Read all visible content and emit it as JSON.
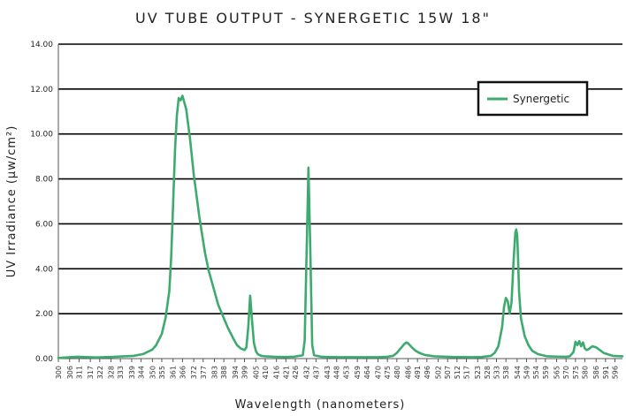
{
  "chart_data": {
    "type": "line",
    "title": "UV TUBE OUTPUT - SYNERGETIC 15W 18\"",
    "xlabel": "Wavelength (nanometers)",
    "ylabel": "UV Irradiance (μw/cm²)",
    "ylim": [
      0,
      14
    ],
    "xlim": [
      300,
      600
    ],
    "yticks": [
      "0.00",
      "2.00",
      "4.00",
      "6.00",
      "8.00",
      "10.00",
      "12.00",
      "14.00"
    ],
    "xticks": [
      "300",
      "306",
      "311",
      "317",
      "322",
      "328",
      "333",
      "339",
      "344",
      "350",
      "355",
      "361",
      "366",
      "372",
      "377",
      "383",
      "388",
      "394",
      "399",
      "405",
      "410",
      "416",
      "421",
      "426",
      "432",
      "437",
      "443",
      "448",
      "453",
      "459",
      "464",
      "470",
      "475",
      "480",
      "486",
      "491",
      "496",
      "502",
      "507",
      "512",
      "517",
      "523",
      "528",
      "533",
      "538",
      "544",
      "549",
      "554",
      "559",
      "565",
      "570",
      "575",
      "580",
      "586",
      "591",
      "596"
    ],
    "grid": true,
    "legend_position": "top-right",
    "series": [
      {
        "name": "Synergetic",
        "color": "#3daa6e",
        "x": [
          300,
          310,
          320,
          330,
          340,
          345,
          350,
          352,
          355,
          357,
          359,
          360,
          361,
          362,
          363,
          364,
          365,
          366,
          367,
          368,
          370,
          372,
          375,
          378,
          380,
          383,
          385,
          388,
          390,
          393,
          395,
          397,
          399,
          400,
          401,
          402,
          403,
          404,
          405,
          406,
          408,
          410,
          415,
          420,
          425,
          430,
          431,
          432,
          433,
          434,
          435,
          436,
          440,
          450,
          460,
          470,
          475,
          478,
          480,
          482,
          484,
          485,
          486,
          488,
          490,
          492,
          495,
          500,
          510,
          520,
          525,
          530,
          532,
          534,
          536,
          537,
          538,
          539,
          540,
          541,
          542,
          543,
          543.5,
          544,
          544.5,
          545,
          546,
          548,
          550,
          552,
          555,
          560,
          570,
          572,
          574,
          575,
          576,
          577,
          578,
          579,
          580,
          581,
          582,
          584,
          586,
          588,
          590,
          595,
          600
        ],
        "y": [
          0.03,
          0.08,
          0.05,
          0.08,
          0.12,
          0.2,
          0.4,
          0.6,
          1.1,
          1.8,
          3.0,
          4.5,
          6.8,
          9.2,
          10.8,
          11.6,
          11.5,
          11.7,
          11.4,
          11.1,
          9.8,
          8.2,
          6.3,
          4.7,
          3.9,
          3.0,
          2.4,
          1.8,
          1.4,
          0.9,
          0.6,
          0.45,
          0.38,
          0.5,
          1.4,
          2.8,
          1.7,
          0.7,
          0.35,
          0.2,
          0.12,
          0.1,
          0.08,
          0.07,
          0.08,
          0.15,
          0.8,
          4.6,
          8.5,
          4.8,
          0.6,
          0.15,
          0.08,
          0.06,
          0.06,
          0.06,
          0.08,
          0.12,
          0.25,
          0.45,
          0.65,
          0.72,
          0.68,
          0.5,
          0.35,
          0.25,
          0.16,
          0.1,
          0.07,
          0.06,
          0.07,
          0.12,
          0.25,
          0.55,
          1.4,
          2.3,
          2.7,
          2.55,
          2.0,
          2.5,
          4.2,
          5.6,
          5.75,
          5.5,
          4.4,
          3.0,
          1.8,
          1.0,
          0.6,
          0.35,
          0.2,
          0.1,
          0.08,
          0.1,
          0.3,
          0.75,
          0.6,
          0.78,
          0.55,
          0.72,
          0.45,
          0.38,
          0.42,
          0.55,
          0.5,
          0.38,
          0.25,
          0.12,
          0.1
        ]
      }
    ]
  }
}
